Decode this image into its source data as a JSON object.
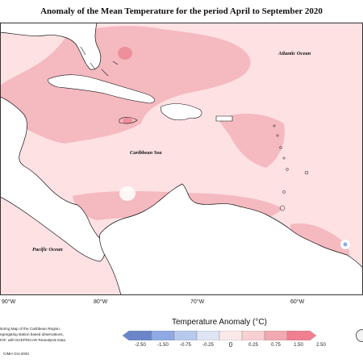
{
  "title": "Anomaly of the Mean Temperature for the period April to September 2020",
  "map": {
    "place_labels": {
      "atlantic": "Atlantic Ocean",
      "caribbean": "Caribbean Sea",
      "pacific": "Pacific Ocean"
    },
    "longitude_labels": [
      "90°W",
      "80°W",
      "70°W",
      "60°W"
    ],
    "colors": {
      "sea_light_anomaly": "#fde1e3",
      "sea_medium_anomaly": "#f5b9c0",
      "sea_strong_anomaly": "#ee8f9c",
      "near_zero": "#ffffff",
      "land": "#ffffff",
      "coastline": "#111111"
    }
  },
  "credits": {
    "lines": [
      "itoring Map of the Caribbean Region.",
      "egregating station based observations,",
      "IOF, with NCEP/NCAR Reanalysis Data"
    ],
    "copyright": "CIMH Oct-2020"
  },
  "legend": {
    "title": "Temperature Anomaly (°C)",
    "ticks": [
      "-2.50",
      "-1.50",
      "-0.75",
      "-0.25",
      "0",
      "0.25",
      "0.75",
      "1.50",
      "2.50"
    ],
    "colors": [
      "#6a86c8",
      "#8fa9e4",
      "#b8c9ee",
      "#dfe6f3",
      "#fbe9ea",
      "#f8d0d4",
      "#f2a9b1",
      "#f07f8f"
    ]
  }
}
